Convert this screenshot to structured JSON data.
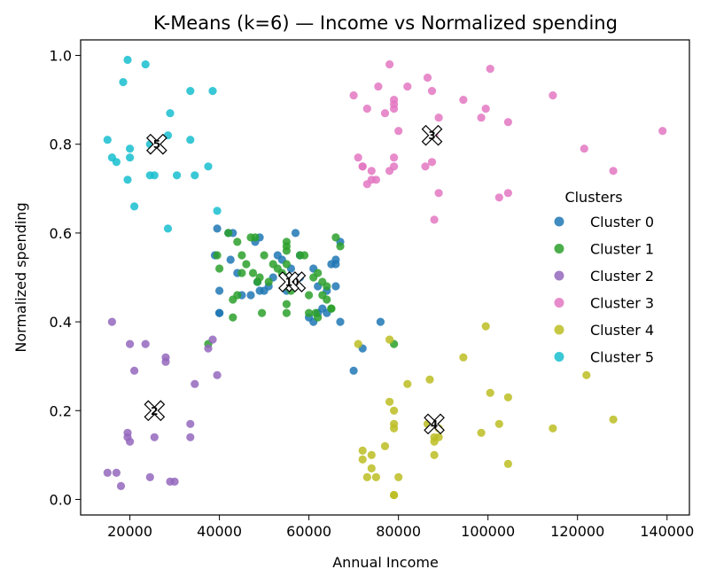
{
  "chart_data": {
    "type": "scatter",
    "title": "K-Means (k=6) — Income vs Normalized spending",
    "xlabel": "Annual Income",
    "ylabel": "Normalized spending",
    "xlim": [
      9000,
      145000
    ],
    "ylim": [
      -0.035,
      1.035
    ],
    "xticks": [
      20000,
      40000,
      60000,
      80000,
      100000,
      120000,
      140000
    ],
    "yticks": [
      0.0,
      0.2,
      0.4,
      0.6,
      0.8,
      1.0
    ],
    "legend_title": "Clusters",
    "legend_position": "center-right",
    "series": [
      {
        "name": "Cluster 0",
        "color": "#1f77b4",
        "points": [
          [
            39500,
            0.61
          ],
          [
            42000,
            0.6
          ],
          [
            43000,
            0.6
          ],
          [
            44000,
            0.51
          ],
          [
            42500,
            0.54
          ],
          [
            39000,
            0.55
          ],
          [
            40000,
            0.47
          ],
          [
            40000,
            0.42
          ],
          [
            40000,
            0.42
          ],
          [
            45000,
            0.46
          ],
          [
            47000,
            0.46
          ],
          [
            48000,
            0.58
          ],
          [
            49000,
            0.59
          ],
          [
            48500,
            0.49
          ],
          [
            49000,
            0.47
          ],
          [
            50000,
            0.47
          ],
          [
            51000,
            0.48
          ],
          [
            52000,
            0.5
          ],
          [
            53000,
            0.55
          ],
          [
            54000,
            0.54
          ],
          [
            56000,
            0.52
          ],
          [
            57000,
            0.6
          ],
          [
            58000,
            0.55
          ],
          [
            60000,
            0.41
          ],
          [
            61000,
            0.4
          ],
          [
            61000,
            0.52
          ],
          [
            62000,
            0.42
          ],
          [
            62000,
            0.48
          ],
          [
            63000,
            0.43
          ],
          [
            64000,
            0.42
          ],
          [
            64000,
            0.47
          ],
          [
            65000,
            0.53
          ],
          [
            66000,
            0.53
          ],
          [
            66000,
            0.54
          ],
          [
            66000,
            0.48
          ],
          [
            67000,
            0.58
          ],
          [
            67000,
            0.4
          ],
          [
            70000,
            0.29
          ],
          [
            72000,
            0.34
          ],
          [
            76000,
            0.4
          ],
          [
            55000,
            0.47
          ],
          [
            58000,
            0.5
          ]
        ]
      },
      {
        "name": "Cluster 1",
        "color": "#2ca02c",
        "points": [
          [
            39500,
            0.55
          ],
          [
            40000,
            0.52
          ],
          [
            42000,
            0.6
          ],
          [
            43000,
            0.45
          ],
          [
            43000,
            0.41
          ],
          [
            44000,
            0.46
          ],
          [
            44000,
            0.58
          ],
          [
            45000,
            0.55
          ],
          [
            45000,
            0.51
          ],
          [
            46000,
            0.53
          ],
          [
            47000,
            0.59
          ],
          [
            47500,
            0.51
          ],
          [
            48000,
            0.59
          ],
          [
            48500,
            0.49
          ],
          [
            49000,
            0.5
          ],
          [
            49500,
            0.42
          ],
          [
            50000,
            0.55
          ],
          [
            51000,
            0.49
          ],
          [
            52000,
            0.53
          ],
          [
            53000,
            0.52
          ],
          [
            54000,
            0.51
          ],
          [
            55000,
            0.58
          ],
          [
            55000,
            0.57
          ],
          [
            55000,
            0.56
          ],
          [
            55000,
            0.53
          ],
          [
            55000,
            0.5
          ],
          [
            55000,
            0.48
          ],
          [
            55000,
            0.44
          ],
          [
            55000,
            0.42
          ],
          [
            56000,
            0.47
          ],
          [
            57000,
            0.5
          ],
          [
            58000,
            0.55
          ],
          [
            59000,
            0.55
          ],
          [
            60000,
            0.46
          ],
          [
            60000,
            0.42
          ],
          [
            61000,
            0.5
          ],
          [
            62000,
            0.51
          ],
          [
            63000,
            0.49
          ],
          [
            63000,
            0.46
          ],
          [
            64000,
            0.48
          ],
          [
            64000,
            0.45
          ],
          [
            65000,
            0.43
          ],
          [
            65000,
            0.43
          ],
          [
            66000,
            0.59
          ],
          [
            67000,
            0.57
          ],
          [
            37500,
            0.35
          ],
          [
            79000,
            0.35
          ],
          [
            61500,
            0.42
          ],
          [
            62000,
            0.41
          ]
        ]
      },
      {
        "name": "Cluster 2",
        "color": "#9467bd",
        "points": [
          [
            16000,
            0.4
          ],
          [
            20000,
            0.35
          ],
          [
            21000,
            0.29
          ],
          [
            23500,
            0.35
          ],
          [
            28000,
            0.32
          ],
          [
            28000,
            0.31
          ],
          [
            34500,
            0.26
          ],
          [
            38500,
            0.36
          ],
          [
            37500,
            0.34
          ],
          [
            39500,
            0.28
          ],
          [
            33500,
            0.17
          ],
          [
            33500,
            0.14
          ],
          [
            19500,
            0.15
          ],
          [
            19500,
            0.14
          ],
          [
            20000,
            0.13
          ],
          [
            25500,
            0.14
          ],
          [
            15000,
            0.06
          ],
          [
            17000,
            0.06
          ],
          [
            18000,
            0.03
          ],
          [
            24500,
            0.05
          ],
          [
            29000,
            0.04
          ],
          [
            30000,
            0.04
          ]
        ]
      },
      {
        "name": "Cluster 3",
        "color": "#e377c2",
        "points": [
          [
            70000,
            0.91
          ],
          [
            73000,
            0.88
          ],
          [
            75500,
            0.93
          ],
          [
            78000,
            0.98
          ],
          [
            79000,
            0.9
          ],
          [
            79000,
            0.89
          ],
          [
            79000,
            0.88
          ],
          [
            77000,
            0.87
          ],
          [
            82000,
            0.93
          ],
          [
            80000,
            0.83
          ],
          [
            86500,
            0.95
          ],
          [
            87500,
            0.92
          ],
          [
            89000,
            0.86
          ],
          [
            88000,
            0.82
          ],
          [
            94500,
            0.9
          ],
          [
            98500,
            0.86
          ],
          [
            99500,
            0.88
          ],
          [
            100500,
            0.97
          ],
          [
            104500,
            0.85
          ],
          [
            114500,
            0.91
          ],
          [
            71000,
            0.77
          ],
          [
            72000,
            0.75
          ],
          [
            72000,
            0.75
          ],
          [
            74000,
            0.74
          ],
          [
            74000,
            0.72
          ],
          [
            75000,
            0.72
          ],
          [
            73000,
            0.71
          ],
          [
            78000,
            0.74
          ],
          [
            79000,
            0.75
          ],
          [
            79000,
            0.77
          ],
          [
            86000,
            0.75
          ],
          [
            87500,
            0.76
          ],
          [
            89000,
            0.69
          ],
          [
            88000,
            0.63
          ],
          [
            102500,
            0.68
          ],
          [
            104500,
            0.69
          ],
          [
            121500,
            0.79
          ],
          [
            128000,
            0.74
          ],
          [
            139000,
            0.83
          ]
        ]
      },
      {
        "name": "Cluster 4",
        "color": "#bcbd22",
        "points": [
          [
            71000,
            0.35
          ],
          [
            78000,
            0.36
          ],
          [
            78000,
            0.22
          ],
          [
            79000,
            0.2
          ],
          [
            82000,
            0.26
          ],
          [
            79000,
            0.17
          ],
          [
            79000,
            0.16
          ],
          [
            77000,
            0.12
          ],
          [
            72000,
            0.11
          ],
          [
            72000,
            0.09
          ],
          [
            74000,
            0.1
          ],
          [
            74000,
            0.07
          ],
          [
            73000,
            0.05
          ],
          [
            75000,
            0.05
          ],
          [
            80000,
            0.05
          ],
          [
            79000,
            0.01
          ],
          [
            79000,
            0.01
          ],
          [
            87000,
            0.27
          ],
          [
            86500,
            0.17
          ],
          [
            89000,
            0.16
          ],
          [
            88000,
            0.14
          ],
          [
            89000,
            0.14
          ],
          [
            88000,
            0.13
          ],
          [
            88000,
            0.1
          ],
          [
            94500,
            0.32
          ],
          [
            99500,
            0.39
          ],
          [
            100500,
            0.24
          ],
          [
            104500,
            0.23
          ],
          [
            102500,
            0.17
          ],
          [
            98500,
            0.15
          ],
          [
            104500,
            0.08
          ],
          [
            114500,
            0.16
          ],
          [
            122000,
            0.28
          ],
          [
            128000,
            0.18
          ]
        ]
      },
      {
        "name": "Cluster 5",
        "color": "#17becf",
        "points": [
          [
            19500,
            0.99
          ],
          [
            23500,
            0.98
          ],
          [
            18500,
            0.94
          ],
          [
            33500,
            0.92
          ],
          [
            38500,
            0.92
          ],
          [
            29000,
            0.87
          ],
          [
            15000,
            0.81
          ],
          [
            20000,
            0.79
          ],
          [
            24500,
            0.8
          ],
          [
            28500,
            0.82
          ],
          [
            33500,
            0.81
          ],
          [
            16000,
            0.77
          ],
          [
            17000,
            0.76
          ],
          [
            20000,
            0.77
          ],
          [
            19500,
            0.72
          ],
          [
            24500,
            0.73
          ],
          [
            25500,
            0.73
          ],
          [
            30500,
            0.73
          ],
          [
            34500,
            0.73
          ],
          [
            37500,
            0.75
          ],
          [
            21000,
            0.66
          ],
          [
            39500,
            0.65
          ],
          [
            28500,
            0.61
          ]
        ]
      }
    ],
    "centroids": [
      {
        "label": "0",
        "x": 57000,
        "y": 0.49
      },
      {
        "label": "1",
        "x": 55500,
        "y": 0.49
      },
      {
        "label": "2",
        "x": 25500,
        "y": 0.2
      },
      {
        "label": "3",
        "x": 87500,
        "y": 0.82
      },
      {
        "label": "4",
        "x": 88000,
        "y": 0.17
      },
      {
        "label": "5",
        "x": 26000,
        "y": 0.8
      }
    ]
  }
}
